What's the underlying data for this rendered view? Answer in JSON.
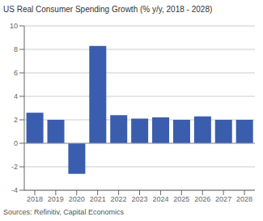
{
  "chart_data": {
    "type": "bar",
    "title": "US Real Consumer Spending Growth (% y/y, 2018 - 2028)",
    "annotations": [
      "Sources: Refinitiv, Capital Economics"
    ],
    "categories": [
      "2018",
      "2019",
      "2020",
      "2021",
      "2022",
      "2023",
      "2024",
      "2025",
      "2026",
      "2027",
      "2028"
    ],
    "values": [
      2.6,
      2.0,
      -2.6,
      8.3,
      2.4,
      2.1,
      2.2,
      2.0,
      2.3,
      2.0,
      2.0
    ],
    "color": "#3a5dae",
    "ylim": [
      -4,
      10
    ],
    "yticks": [
      -4,
      -2,
      0,
      2,
      4,
      6,
      8,
      10
    ],
    "grid": true
  }
}
